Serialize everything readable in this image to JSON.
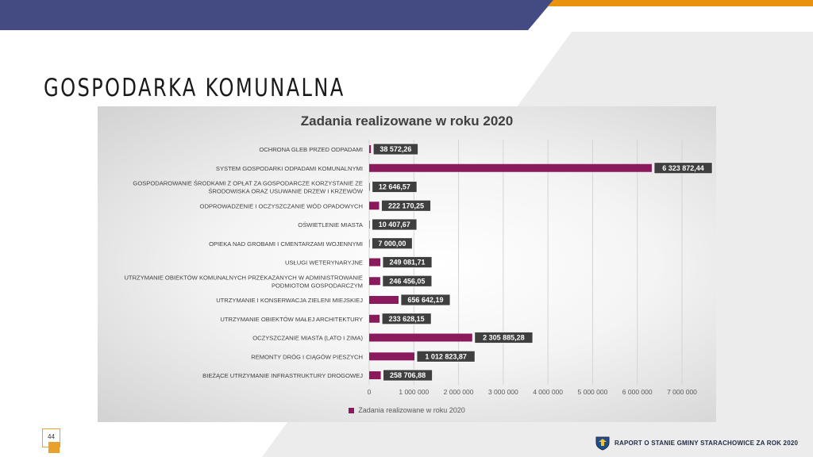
{
  "slide": {
    "title": "GOSPODARKA KOMUNALNA",
    "page_number": "44",
    "footer": "RAPORT O STANIE GMINY STARACHOWICE ZA ROK 2020",
    "colors": {
      "header_navy": "#444a82",
      "header_orange": "#e8920f",
      "accent": "#e8a12c",
      "bar": "#8b1a5c"
    },
    "icons": {
      "footer_logo": "coat-of-arms-icon"
    }
  },
  "chart_data": {
    "type": "bar",
    "orientation": "horizontal",
    "title": "Zadania realizowane w roku 2020",
    "categories": [
      [
        "OCHRONA GLEB PRZED ODPADAMI"
      ],
      [
        "SYSTEM GOSPODARKI ODPADAMI KOMUNALNYMI"
      ],
      [
        "GOSPODAROWANIE ŚRODKAMI Z OPŁAT ZA GOSPODARCZE KORZYSTANIE ZE",
        "ŚRODOWISKA ORAZ USUWANIE DRZEW I KRZEWÓW"
      ],
      [
        "ODPROWADZENIE I OCZYSZCZANIE WÓD OPADOWYCH"
      ],
      [
        "OŚWIETLENIE MIASTA"
      ],
      [
        "OPIEKA NAD GROBAMI I CMENTARZAMI WOJENNYMI"
      ],
      [
        "USŁUGI WETERYNARYJNE"
      ],
      [
        "UTRZYMANIE OBIEKTÓW KOMUNALNYCH PRZEKAZANYCH W ADMINISTROWANIE",
        "PODMIOTOM GOSPODARCZYM"
      ],
      [
        "UTRZYMANIE I KONSERWACJA ZIELENI MIEJSKIEJ"
      ],
      [
        "UTRZYMANIE OBIEKTÓW MAŁEJ ARCHITEKTURY"
      ],
      [
        "OCZYSZCZANIE MIASTA (LATO I ZIMA)"
      ],
      [
        "REMONTY DRÓG I CIĄGÓW PIESZYCH"
      ],
      [
        "BIEŻĄCE UTRZYMANIE INFRASTRUKTURY DROGOWEJ"
      ]
    ],
    "series": [
      {
        "name": "Zadania realizowane w roku 2020",
        "color": "#8b1a5c",
        "values": [
          38572.26,
          6323872.44,
          12646.57,
          222170.25,
          10407.67,
          7000.0,
          249081.71,
          246456.05,
          656642.19,
          233628.15,
          2305885.28,
          1012823.87,
          258706.88
        ],
        "labels": [
          "38 572,26",
          "6 323 872,44",
          "12 646,57",
          "222 170,25",
          "10 407,67",
          "7 000,00",
          "249 081,71",
          "246 456,05",
          "656 642,19",
          "233 628,15",
          "2 305 885,28",
          "1 012 823,87",
          "258 706,88"
        ]
      }
    ],
    "xlim": [
      0,
      7000000
    ],
    "xticks": [
      0,
      1000000,
      2000000,
      3000000,
      4000000,
      5000000,
      6000000,
      7000000
    ],
    "xtick_labels": [
      "0",
      "1 000 000",
      "2 000 000",
      "3 000 000",
      "4 000 000",
      "5 000 000",
      "6 000 000",
      "7 000 000"
    ],
    "grid": "vertical",
    "legend": "bottom"
  }
}
